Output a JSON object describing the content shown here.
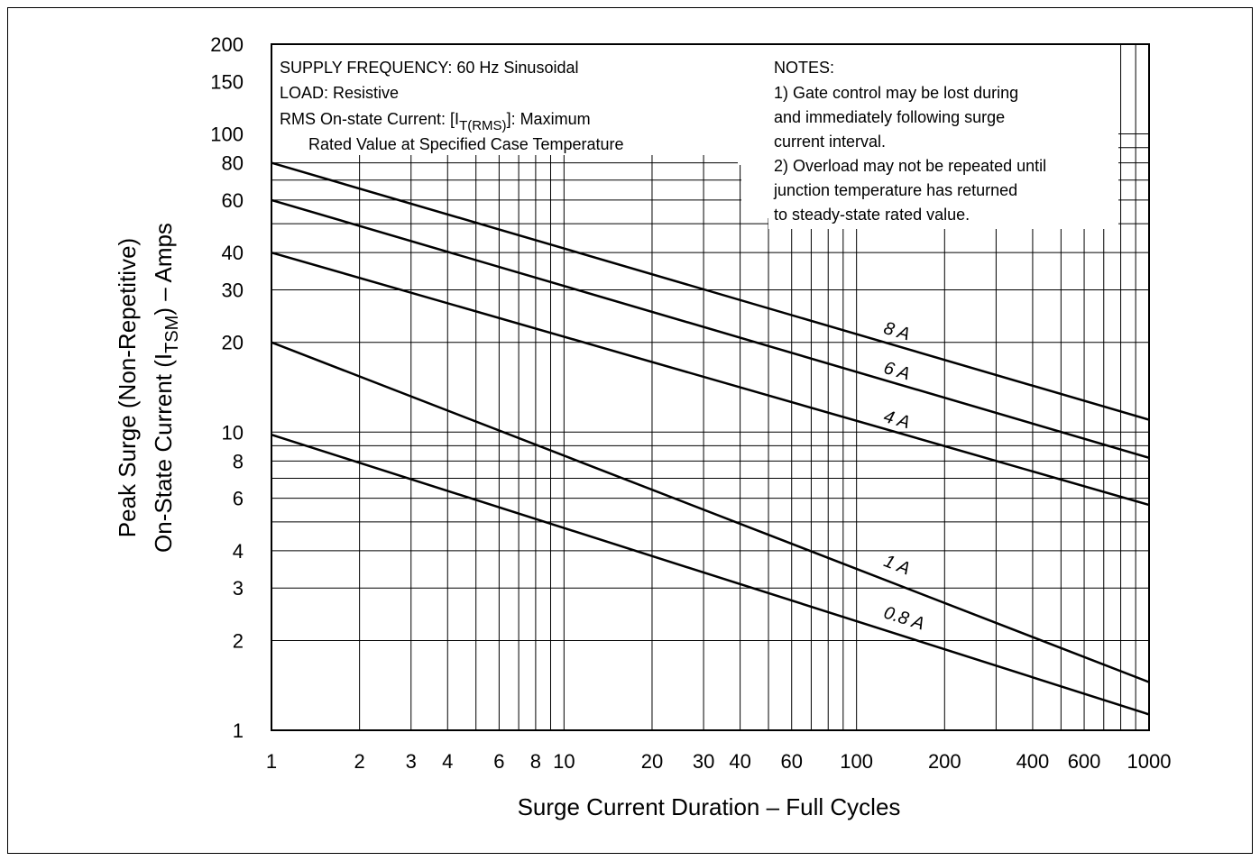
{
  "chart_data": {
    "type": "line",
    "scale": {
      "x": "log",
      "y": "log"
    },
    "xlabel": "Surge Current Duration – Full Cycles",
    "ylabel_line1": "Peak Surge (Non-Repetitive)",
    "ylabel_line2_prefix": "On-State Current (I",
    "ylabel_line2_sub": "TSM",
    "ylabel_line2_suffix": ") – Amps",
    "xlim": [
      1,
      1000
    ],
    "ylim": [
      1,
      200
    ],
    "x_ticks": [
      1,
      2,
      3,
      4,
      6,
      8,
      10,
      20,
      30,
      40,
      60,
      100,
      200,
      400,
      600,
      1000
    ],
    "x_tick_labels": [
      "1",
      "2",
      "3",
      "4",
      "6",
      "8",
      "10",
      "20",
      "30",
      "40",
      "60",
      "100",
      "200",
      "400",
      "600",
      "1000"
    ],
    "y_ticks": [
      1,
      2,
      3,
      4,
      6,
      8,
      10,
      20,
      30,
      40,
      60,
      80,
      100,
      150,
      200
    ],
    "y_tick_labels": [
      "1",
      "2",
      "3",
      "4",
      "6",
      "8",
      "10",
      "20",
      "30",
      "40",
      "60",
      "80",
      "100",
      "150",
      "200"
    ],
    "x_grid": [
      2,
      3,
      4,
      5,
      6,
      7,
      8,
      9,
      10,
      20,
      30,
      40,
      50,
      60,
      70,
      80,
      90,
      100,
      200,
      300,
      400,
      500,
      600,
      700,
      800,
      900
    ],
    "y_grid": [
      2,
      3,
      4,
      5,
      6,
      7,
      8,
      9,
      10,
      20,
      30,
      40,
      50,
      60,
      70,
      80,
      90,
      100
    ],
    "grid": true,
    "series": [
      {
        "name": "8 A",
        "x": [
          1,
          1000
        ],
        "y": [
          80,
          11
        ]
      },
      {
        "name": "6 A",
        "x": [
          1,
          1000
        ],
        "y": [
          60,
          8.2
        ]
      },
      {
        "name": "4 A",
        "x": [
          1,
          1000
        ],
        "y": [
          40,
          5.7
        ]
      },
      {
        "name": "1 A",
        "x": [
          1,
          1000
        ],
        "y": [
          20,
          1.45
        ]
      },
      {
        "name": "0.8 A",
        "x": [
          1,
          1000
        ],
        "y": [
          9.8,
          1.13
        ]
      }
    ],
    "annotations": {
      "conditions": {
        "line1": "SUPPLY FREQUENCY: 60 Hz Sinusoidal",
        "line2": "LOAD: Resistive",
        "line3_prefix": "RMS On-state Current: [I",
        "line3_sub": "T(RMS)",
        "line3_suffix": "]: Maximum",
        "line4": "Rated Value at Specified Case Temperature"
      },
      "notes": [
        "NOTES:",
        "1) Gate control may be lost during",
        "and immediately following surge",
        "current interval.",
        "2) Overload may not be repeated until",
        "junction temperature has returned",
        "to steady-state rated value."
      ]
    }
  }
}
